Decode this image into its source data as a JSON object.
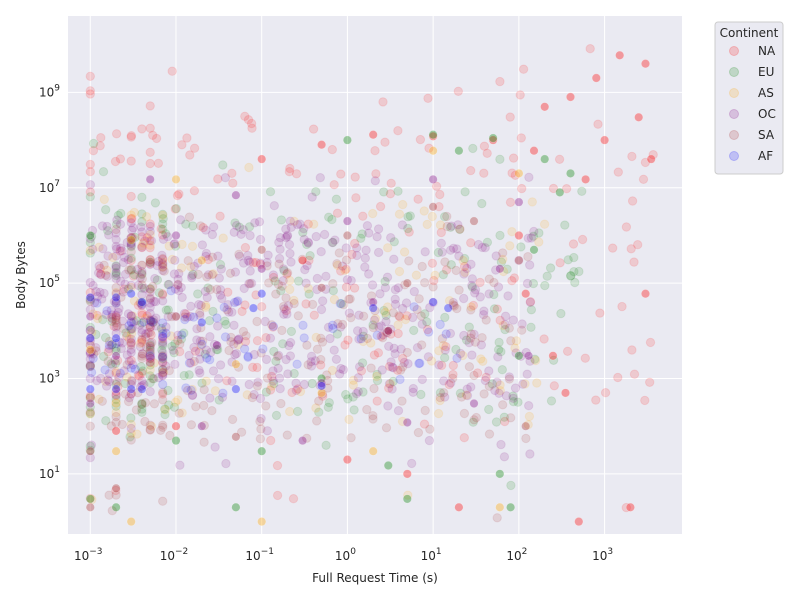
{
  "chart_data": {
    "type": "scatter",
    "title": "",
    "xlabel": "Full Request Time (s)",
    "ylabel": "Body Bytes",
    "xscale": "log",
    "yscale": "log",
    "xlim": [
      0.00055,
      8000
    ],
    "ylim": [
      0.55,
      40000000000
    ],
    "grid": true,
    "background": "#eaeaf2",
    "x_ticks": [
      {
        "value": 0.001,
        "base": "10",
        "exp": "−3"
      },
      {
        "value": 0.01,
        "base": "10",
        "exp": "−2"
      },
      {
        "value": 0.1,
        "base": "10",
        "exp": "−1"
      },
      {
        "value": 1,
        "base": "10",
        "exp": "0"
      },
      {
        "value": 10,
        "base": "10",
        "exp": "1"
      },
      {
        "value": 100,
        "base": "10",
        "exp": "2"
      },
      {
        "value": 1000,
        "base": "10",
        "exp": "3"
      }
    ],
    "y_ticks": [
      {
        "value": 10,
        "base": "10",
        "exp": "1"
      },
      {
        "value": 1000,
        "base": "10",
        "exp": "3"
      },
      {
        "value": 100000,
        "base": "10",
        "exp": "5"
      },
      {
        "value": 10000000,
        "base": "10",
        "exp": "7"
      },
      {
        "value": 1000000000,
        "base": "10",
        "exp": "9"
      }
    ],
    "legend": {
      "title": "Continent",
      "position": "outside-top-right"
    },
    "series": [
      {
        "name": "NA",
        "color": "#ff0000",
        "description": "broadest spread, long tail to ~4000 s and ~1e10 bytes",
        "x_range": [
          0.001,
          4000
        ],
        "y_range": [
          1,
          10000000000
        ],
        "points": [
          [
            1500,
            6000000000
          ],
          [
            3000,
            4000000000
          ],
          [
            800,
            2000000000
          ],
          [
            400,
            800000000
          ],
          [
            2500,
            300000000
          ],
          [
            1000,
            100000000
          ],
          [
            3500,
            40000000
          ],
          [
            600,
            15000000
          ],
          [
            200,
            500000000
          ],
          [
            150,
            60000000
          ],
          [
            100,
            1000000
          ],
          [
            120,
            60000
          ],
          [
            3000,
            60000
          ],
          [
            250,
            3000
          ],
          [
            350,
            500
          ],
          [
            2000,
            2
          ],
          [
            500,
            1
          ],
          [
            0.1,
            40000000
          ],
          [
            0.5,
            80000000
          ],
          [
            2,
            130000000
          ],
          [
            10,
            120000000
          ],
          [
            50,
            100000000
          ],
          [
            0.002,
            80
          ],
          [
            0.01,
            100
          ],
          [
            1,
            20
          ],
          [
            5,
            10
          ],
          [
            20,
            2
          ],
          [
            0.3,
            300000
          ]
        ]
      },
      {
        "name": "EU",
        "color": "#008000",
        "description": "dense cloud 1e-3 to ~500 s, up to ~1.5e8 bytes",
        "x_range": [
          0.001,
          600
        ],
        "y_range": [
          1,
          150000000
        ],
        "points": [
          [
            0.001,
            1000000
          ],
          [
            0.001,
            3
          ],
          [
            0.002,
            2
          ],
          [
            0.01,
            50
          ],
          [
            0.1,
            30
          ],
          [
            1,
            100000000
          ],
          [
            10,
            130000000
          ],
          [
            50,
            110000000
          ],
          [
            200,
            40000000
          ],
          [
            300,
            8000000
          ],
          [
            150,
            500000
          ],
          [
            100,
            3000
          ],
          [
            60,
            10
          ],
          [
            5,
            3
          ],
          [
            0.05,
            2
          ],
          [
            400,
            20000000
          ],
          [
            20,
            60000000
          ],
          [
            0.5,
            1000
          ],
          [
            3,
            15
          ],
          [
            80,
            2
          ]
        ]
      },
      {
        "name": "AS",
        "color": "#ffa500",
        "description": "concentrated at short times, up to ~1e8 bytes",
        "x_range": [
          0.001,
          200
        ],
        "y_range": [
          1,
          100000000
        ],
        "points": [
          [
            0.001,
            4000
          ],
          [
            0.002,
            30
          ],
          [
            0.003,
            1
          ],
          [
            0.01,
            15000000
          ],
          [
            0.05,
            2000
          ],
          [
            0.1,
            1
          ],
          [
            0.5,
            500
          ],
          [
            2,
            30
          ],
          [
            10,
            60000000
          ],
          [
            60,
            2
          ],
          [
            0.02,
            300000
          ],
          [
            0.003,
            800000
          ],
          [
            100,
            20000000
          ]
        ]
      },
      {
        "name": "OC",
        "color": "#800080",
        "description": "dominant dense band 1e-3 to ~150 s, ~100 to ~1.5e7 bytes",
        "x_range": [
          0.001,
          150
        ],
        "y_range": [
          10,
          20000000
        ],
        "points": [
          [
            0.001,
            20000
          ],
          [
            0.002,
            3000
          ],
          [
            0.005,
            15000000
          ],
          [
            0.01,
            1000000
          ],
          [
            0.03,
            5000
          ],
          [
            0.1,
            200000
          ],
          [
            0.3,
            50
          ],
          [
            1,
            2000000
          ],
          [
            3,
            10000
          ],
          [
            10,
            15000000
          ],
          [
            30,
            300
          ],
          [
            100,
            5000000
          ],
          [
            130,
            3000
          ],
          [
            0.001,
            300
          ],
          [
            0.02,
            100
          ],
          [
            0.5,
            800
          ],
          [
            5,
            120
          ],
          [
            60,
            200000
          ],
          [
            2,
            40000
          ],
          [
            0.05,
            7000000
          ]
        ]
      },
      {
        "name": "SA",
        "color": "#a52a2a",
        "description": "overlapping band, concentrated 0.1 to 100 s",
        "x_range": [
          0.001,
          130
        ],
        "y_range": [
          1,
          5000000
        ],
        "points": [
          [
            0.001,
            30
          ],
          [
            0.002,
            5
          ],
          [
            0.001,
            2
          ],
          [
            0.1,
            500000
          ],
          [
            0.5,
            80000
          ],
          [
            1,
            1000000
          ],
          [
            3,
            10000
          ],
          [
            10,
            4000000
          ],
          [
            30,
            2000000
          ],
          [
            100,
            300000
          ],
          [
            120,
            100
          ],
          [
            0.01,
            20000
          ],
          [
            0.05,
            60
          ],
          [
            5,
            100000
          ]
        ]
      },
      {
        "name": "AF",
        "color": "#0000ff",
        "description": "sparse, mostly short times at ~600 bytes and ~5e4 bytes",
        "x_range": [
          0.001,
          20
        ],
        "y_range": [
          300,
          100000
        ],
        "points": [
          [
            0.001,
            600
          ],
          [
            0.002,
            600
          ],
          [
            0.003,
            600
          ],
          [
            0.004,
            600
          ],
          [
            0.001,
            50000
          ],
          [
            0.002,
            50000
          ],
          [
            0.003,
            60000
          ],
          [
            0.004,
            40000
          ],
          [
            0.001,
            7000
          ],
          [
            0.002,
            7000
          ],
          [
            0.05,
            600
          ],
          [
            0.08,
            30000
          ],
          [
            0.1,
            60000
          ],
          [
            0.5,
            700
          ],
          [
            2,
            30000
          ],
          [
            10,
            40000
          ],
          [
            15,
            30000
          ],
          [
            0.02,
            15000
          ]
        ]
      }
    ]
  }
}
